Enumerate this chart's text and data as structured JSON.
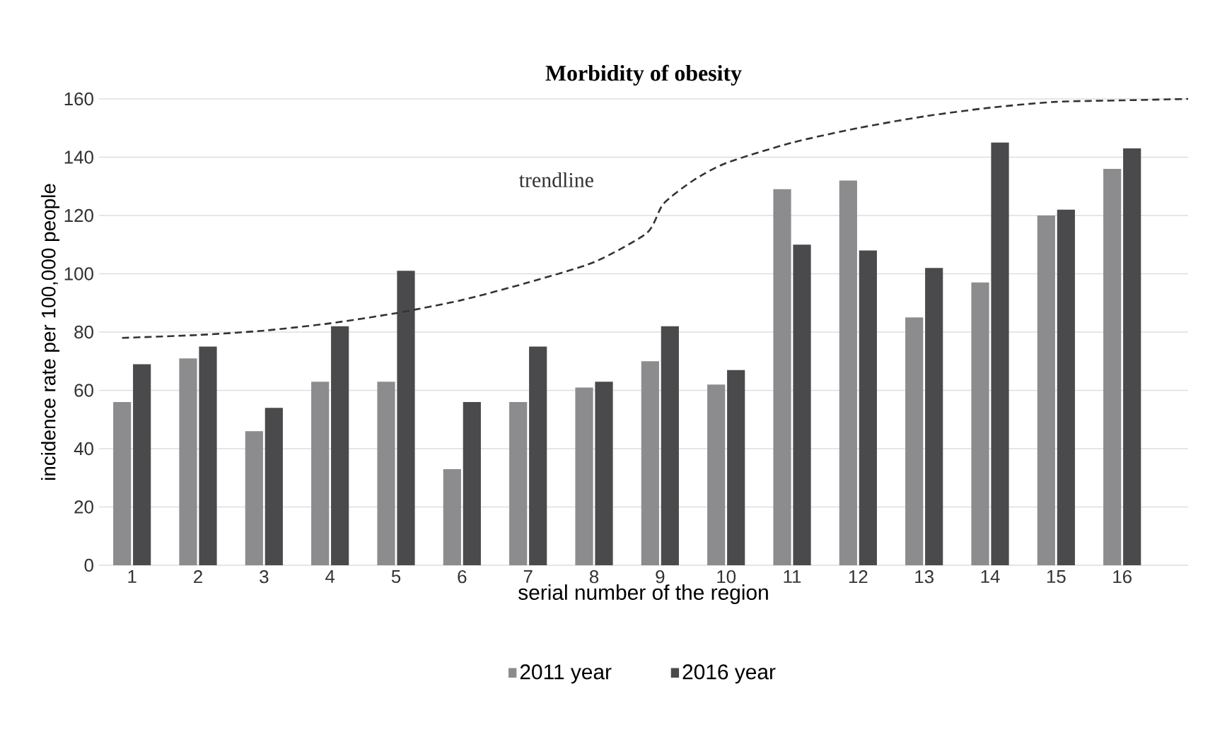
{
  "chart_data": {
    "type": "bar",
    "title": "Morbidity of obesity",
    "xlabel": "serial number of the region",
    "ylabel": "incidence rate per 100,000 people",
    "x": [
      1,
      2,
      3,
      4,
      5,
      6,
      7,
      8,
      9,
      10,
      11,
      12,
      13,
      14,
      15,
      16
    ],
    "xlim": [
      0.5,
      17
    ],
    "xticks": [
      1,
      2,
      3,
      4,
      5,
      6,
      7,
      8,
      9,
      10,
      11,
      12,
      13,
      14,
      15,
      16
    ],
    "ylim": [
      0,
      160
    ],
    "yticks": [
      0,
      20,
      40,
      60,
      80,
      100,
      120,
      140,
      160
    ],
    "series": [
      {
        "name": "2011 year",
        "color": "#8c8c8e",
        "values": [
          56,
          71,
          46,
          63,
          63,
          33,
          56,
          61,
          70,
          62,
          129,
          132,
          85,
          97,
          120,
          136
        ]
      },
      {
        "name": "2016 year",
        "color": "#4a4a4c",
        "values": [
          69,
          75,
          54,
          82,
          101,
          56,
          75,
          63,
          82,
          67,
          110,
          108,
          102,
          145,
          122,
          143
        ]
      },
      {
        "type": "line",
        "color": "#333333",
        "line_style": "dashed",
        "marker": "none",
        "x": [
          0.85,
          2,
          3,
          4,
          5,
          6,
          7,
          8,
          8.8,
          9.05,
          9.5,
          10,
          11,
          12,
          13,
          14,
          15,
          16,
          17
        ],
        "values": [
          78,
          79,
          80.5,
          83,
          86.5,
          91,
          97,
          104,
          114,
          124,
          132,
          138,
          145,
          150,
          154,
          157,
          159,
          159.5,
          160
        ]
      }
    ],
    "annotations": [
      "trendline"
    ],
    "grid": "y",
    "legend": "bottom"
  }
}
